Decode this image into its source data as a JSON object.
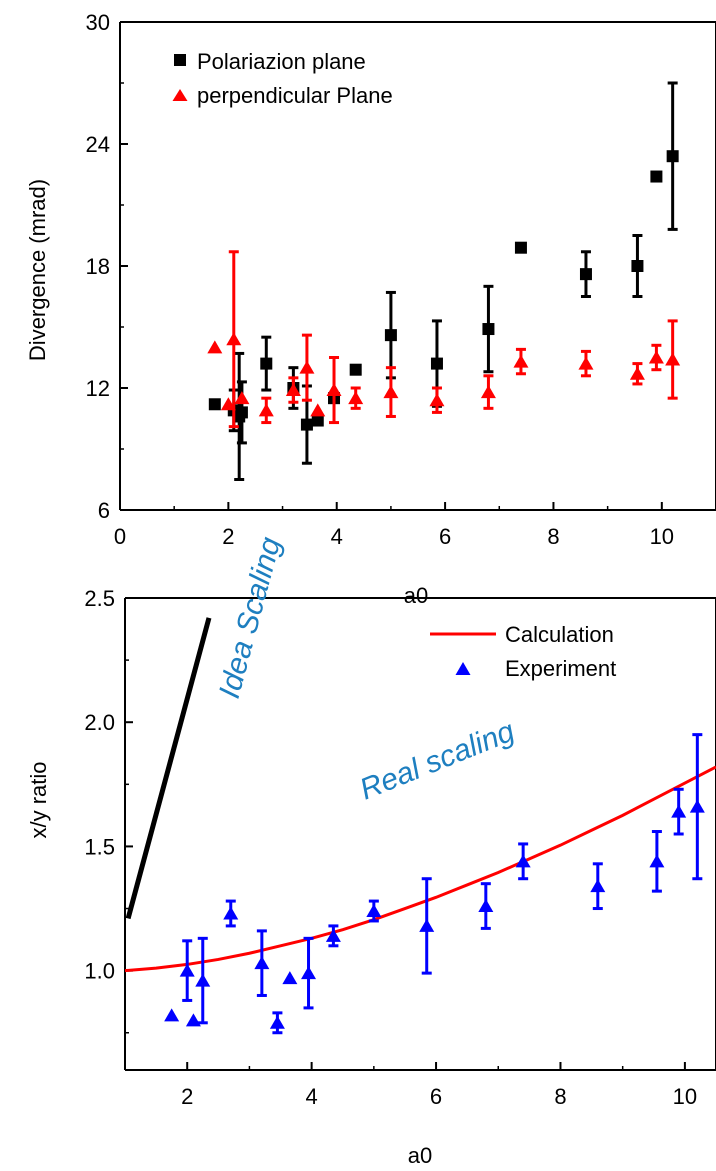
{
  "chart_data": [
    {
      "type": "scatter",
      "xlabel": "a0",
      "ylabel": "Divergence (mrad)",
      "xlim": [
        0,
        11
      ],
      "ylim": [
        6,
        30
      ],
      "x_ticks": [
        "0",
        "2",
        "4",
        "6",
        "8",
        "10"
      ],
      "y_ticks": [
        "6",
        "12",
        "18",
        "24",
        "30"
      ],
      "legend": "top-left",
      "grid": false,
      "series": [
        {
          "name": "Polariazion plane",
          "marker": "square",
          "color": "#000000",
          "points": [
            {
              "x": 1.75,
              "y": 11.2,
              "err": 0
            },
            {
              "x": 2.1,
              "y": 10.9,
              "err": 1.0
            },
            {
              "x": 2.2,
              "y": 10.6,
              "err": 3.1
            },
            {
              "x": 2.25,
              "y": 10.8,
              "err": 1.5
            },
            {
              "x": 2.7,
              "y": 13.2,
              "err": 1.3
            },
            {
              "x": 3.2,
              "y": 12.0,
              "err": 1.0
            },
            {
              "x": 3.45,
              "y": 10.2,
              "err": 1.9
            },
            {
              "x": 3.65,
              "y": 10.4,
              "err": 0
            },
            {
              "x": 3.95,
              "y": 11.5,
              "err": 0
            },
            {
              "x": 4.35,
              "y": 12.9,
              "err": 0
            },
            {
              "x": 5.0,
              "y": 14.6,
              "err": 2.1
            },
            {
              "x": 5.85,
              "y": 13.2,
              "err": 2.1
            },
            {
              "x": 6.8,
              "y": 14.9,
              "err": 2.1
            },
            {
              "x": 7.4,
              "y": 18.9,
              "err": 0
            },
            {
              "x": 8.6,
              "y": 17.6,
              "err": 1.1
            },
            {
              "x": 9.55,
              "y": 18.0,
              "err": 1.5
            },
            {
              "x": 9.9,
              "y": 22.4,
              "err": 0
            },
            {
              "x": 10.2,
              "y": 23.4,
              "err": 3.6
            }
          ]
        },
        {
          "name": "perpendicular Plane",
          "marker": "triangle",
          "color": "#ff0000",
          "points": [
            {
              "x": 1.75,
              "y": 14.0,
              "err": 0
            },
            {
              "x": 2.0,
              "y": 11.2,
              "err": 0
            },
            {
              "x": 2.1,
              "y": 14.4,
              "err": 4.3
            },
            {
              "x": 2.25,
              "y": 11.5,
              "err": 0
            },
            {
              "x": 2.7,
              "y": 10.9,
              "err": 0.6
            },
            {
              "x": 3.2,
              "y": 11.9,
              "err": 0.6
            },
            {
              "x": 3.45,
              "y": 13.0,
              "err": 1.6
            },
            {
              "x": 3.65,
              "y": 10.9,
              "err": 0
            },
            {
              "x": 3.95,
              "y": 11.9,
              "err": 1.6
            },
            {
              "x": 4.35,
              "y": 11.5,
              "err": 0.5
            },
            {
              "x": 5.0,
              "y": 11.8,
              "err": 1.2
            },
            {
              "x": 5.85,
              "y": 11.4,
              "err": 0.6
            },
            {
              "x": 6.8,
              "y": 11.8,
              "err": 0.8
            },
            {
              "x": 7.4,
              "y": 13.3,
              "err": 0.6
            },
            {
              "x": 8.6,
              "y": 13.2,
              "err": 0.6
            },
            {
              "x": 9.55,
              "y": 12.7,
              "err": 0.5
            },
            {
              "x": 9.9,
              "y": 13.5,
              "err": 0.6
            },
            {
              "x": 10.2,
              "y": 13.4,
              "err": 1.9
            }
          ]
        }
      ]
    },
    {
      "type": "scatter",
      "xlabel": "a0",
      "ylabel": "x/y ratio",
      "xlim": [
        1,
        10.5
      ],
      "ylim": [
        0.6,
        2.5
      ],
      "x_ticks": [
        "2",
        "4",
        "6",
        "8",
        "10"
      ],
      "y_ticks": [
        "1.0",
        "1.5",
        "2.0",
        "2.5"
      ],
      "legend": "top-right",
      "grid": false,
      "series": [
        {
          "name": "Calculation",
          "kind": "line",
          "color": "#ff0000",
          "x": [
            1.0,
            1.5,
            2.0,
            2.5,
            3.0,
            3.5,
            4.0,
            4.5,
            5.0,
            5.5,
            6.0,
            6.5,
            7.0,
            7.5,
            8.0,
            8.5,
            9.0,
            9.5,
            10.0,
            10.5
          ],
          "y": [
            1.0,
            1.01,
            1.025,
            1.045,
            1.07,
            1.1,
            1.13,
            1.165,
            1.205,
            1.25,
            1.295,
            1.345,
            1.395,
            1.45,
            1.505,
            1.565,
            1.625,
            1.69,
            1.755,
            1.82
          ]
        },
        {
          "name": "Experiment",
          "marker": "triangle",
          "color": "#0000ff",
          "points": [
            {
              "x": 1.75,
              "y": 0.82,
              "err": 0
            },
            {
              "x": 2.0,
              "y": 1.0,
              "err": 0.12
            },
            {
              "x": 2.1,
              "y": 0.8,
              "err": 0
            },
            {
              "x": 2.25,
              "y": 0.96,
              "err": 0.17
            },
            {
              "x": 2.7,
              "y": 1.23,
              "err": 0.05
            },
            {
              "x": 3.2,
              "y": 1.03,
              "err": 0.13
            },
            {
              "x": 3.45,
              "y": 0.79,
              "err": 0.04
            },
            {
              "x": 3.65,
              "y": 0.97,
              "err": 0
            },
            {
              "x": 3.95,
              "y": 0.99,
              "err": 0.14
            },
            {
              "x": 4.35,
              "y": 1.14,
              "err": 0.04
            },
            {
              "x": 5.0,
              "y": 1.24,
              "err": 0.04
            },
            {
              "x": 5.85,
              "y": 1.18,
              "err": 0.19
            },
            {
              "x": 6.8,
              "y": 1.26,
              "err": 0.09
            },
            {
              "x": 7.4,
              "y": 1.44,
              "err": 0.07
            },
            {
              "x": 8.6,
              "y": 1.34,
              "err": 0.09
            },
            {
              "x": 9.55,
              "y": 1.44,
              "err": 0.12
            },
            {
              "x": 9.9,
              "y": 1.64,
              "err": 0.09
            },
            {
              "x": 10.2,
              "y": 1.66,
              "err": 0.29
            }
          ]
        },
        {
          "kind": "reference-line",
          "color": "#000000",
          "x": [
            1.05,
            2.35
          ],
          "y": [
            1.21,
            2.42
          ]
        }
      ],
      "annotations": [
        {
          "text": "Idea Scaling",
          "color": "#1e7fc0"
        },
        {
          "text": "Real scaling",
          "color": "#1e7fc0"
        }
      ]
    }
  ]
}
